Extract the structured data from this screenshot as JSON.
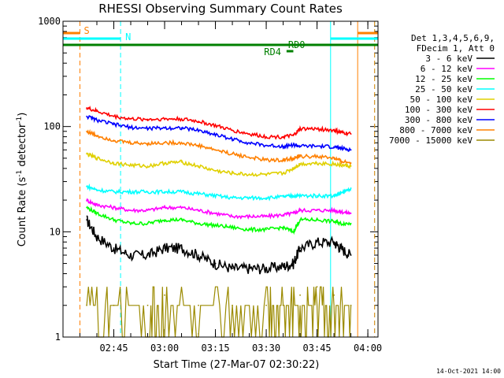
{
  "chart_data": {
    "type": "line",
    "title": "RHESSI Observing Summary Count Rates",
    "xlabel": "Start Time (27-Mar-07 02:30:22)",
    "ylabel_prefix": "Count Rate (s",
    "ylabel_sup1": "-1",
    "ylabel_mid": " detector",
    "ylabel_sup2": "-1",
    "ylabel_suffix": ")",
    "y_scale": "log",
    "ylim": [
      1,
      1000
    ],
    "xlim": [
      "02:30",
      "04:03"
    ],
    "x_ticks": [
      "02:45",
      "03:00",
      "03:15",
      "03:30",
      "03:45",
      "04:00"
    ],
    "y_ticks": [
      "1",
      "10",
      "100",
      "1000"
    ],
    "legend_header": [
      "Det 1,3,4,5,6,9,",
      "FDecim 1, Att 0"
    ],
    "legend_placement": "right",
    "series": [
      {
        "name": "3 - 6 keV",
        "color": "#000000",
        "x": [
          "02:37",
          "02:40",
          "02:45",
          "02:50",
          "02:55",
          "03:00",
          "03:05",
          "03:10",
          "03:15",
          "03:20",
          "03:25",
          "03:30",
          "03:35",
          "03:38",
          "03:40",
          "03:45",
          "03:50",
          "03:52",
          "03:55"
        ],
        "y": [
          13,
          9,
          7,
          6,
          6,
          7,
          7,
          6,
          5,
          4.5,
          4.5,
          4.5,
          4.7,
          5,
          7,
          8,
          8,
          7,
          6
        ]
      },
      {
        "name": "6 - 12 keV",
        "color": "#ff00ff",
        "x": [
          "02:37",
          "02:40",
          "02:45",
          "02:50",
          "02:55",
          "03:00",
          "03:05",
          "03:10",
          "03:15",
          "03:20",
          "03:25",
          "03:30",
          "03:35",
          "03:38",
          "03:40",
          "03:45",
          "03:50",
          "03:52",
          "03:55"
        ],
        "y": [
          20,
          18,
          17,
          16,
          16,
          17,
          17,
          16,
          15,
          14,
          14,
          14,
          14.5,
          15,
          16,
          16,
          16,
          15.5,
          15
        ]
      },
      {
        "name": "12 - 25 keV",
        "color": "#00ff00",
        "x": [
          "02:37",
          "02:40",
          "02:45",
          "02:50",
          "02:55",
          "03:00",
          "03:05",
          "03:10",
          "03:15",
          "03:20",
          "03:25",
          "03:30",
          "03:35",
          "03:38",
          "03:40",
          "03:45",
          "03:50",
          "03:52",
          "03:55"
        ],
        "y": [
          17,
          15,
          13,
          12,
          12,
          13,
          13,
          12,
          11.5,
          11,
          10.5,
          10.5,
          11,
          10,
          13,
          13,
          12.5,
          12,
          12
        ]
      },
      {
        "name": "25 - 50 keV",
        "color": "#00ffff",
        "x": [
          "02:37",
          "02:40",
          "02:45",
          "02:50",
          "02:55",
          "03:00",
          "03:05",
          "03:10",
          "03:15",
          "03:20",
          "03:25",
          "03:30",
          "03:35",
          "03:38",
          "03:40",
          "03:45",
          "03:50",
          "03:52",
          "03:55"
        ],
        "y": [
          27,
          25,
          24,
          24,
          24,
          24,
          24,
          23,
          22,
          21,
          21,
          21,
          21.5,
          22,
          22,
          22,
          22,
          23,
          26
        ]
      },
      {
        "name": "50 - 100 keV",
        "color": "#e0d000",
        "x": [
          "02:37",
          "02:40",
          "02:45",
          "02:50",
          "02:55",
          "03:00",
          "03:05",
          "03:10",
          "03:15",
          "03:20",
          "03:25",
          "03:30",
          "03:35",
          "03:38",
          "03:40",
          "03:45",
          "03:50",
          "03:52",
          "03:55"
        ],
        "y": [
          55,
          50,
          45,
          43,
          42,
          45,
          46,
          42,
          38,
          36,
          35,
          35,
          36,
          40,
          44,
          45,
          44,
          43,
          42
        ]
      },
      {
        "name": "100 - 300 keV",
        "color": "#ff0000",
        "x": [
          "02:37",
          "02:40",
          "02:45",
          "02:50",
          "02:55",
          "03:00",
          "03:05",
          "03:10",
          "03:15",
          "03:20",
          "03:25",
          "03:30",
          "03:35",
          "03:38",
          "03:40",
          "03:45",
          "03:50",
          "03:52",
          "03:55"
        ],
        "y": [
          150,
          140,
          125,
          118,
          117,
          118,
          118,
          112,
          102,
          92,
          85,
          80,
          80,
          82,
          95,
          95,
          92,
          88,
          85
        ]
      },
      {
        "name": "300 - 800 keV",
        "color": "#0000ff",
        "x": [
          "02:37",
          "02:40",
          "02:45",
          "02:50",
          "02:55",
          "03:00",
          "03:05",
          "03:10",
          "03:15",
          "03:20",
          "03:25",
          "03:30",
          "03:35",
          "03:38",
          "03:40",
          "03:45",
          "03:50",
          "03:52",
          "03:55"
        ],
        "y": [
          125,
          115,
          105,
          98,
          96,
          97,
          97,
          92,
          84,
          76,
          70,
          66,
          65,
          67,
          65,
          65,
          64,
          62,
          60
        ]
      },
      {
        "name": "800 - 7000 keV",
        "color": "#ff8000",
        "x": [
          "02:37",
          "02:40",
          "02:45",
          "02:50",
          "02:55",
          "03:00",
          "03:05",
          "03:10",
          "03:15",
          "03:20",
          "03:25",
          "03:30",
          "03:35",
          "03:38",
          "03:40",
          "03:45",
          "03:50",
          "03:52",
          "03:55"
        ],
        "y": [
          90,
          82,
          74,
          70,
          69,
          70,
          70,
          66,
          60,
          55,
          51,
          48,
          48,
          50,
          52,
          52,
          50,
          47,
          45
        ]
      },
      {
        "name": "7000 - 15000 keV",
        "color": "#9b8a00",
        "x": [
          "02:37",
          "02:45",
          "02:55",
          "03:00",
          "03:10",
          "03:20",
          "03:30",
          "03:35",
          "03:40",
          "03:45",
          "03:50",
          "03:55"
        ],
        "y": [
          2,
          2,
          2,
          2.5,
          2,
          2,
          2,
          2,
          2.5,
          3,
          2.5,
          2
        ]
      }
    ],
    "annotations": [
      {
        "text": "S",
        "color": "#ff8000",
        "x": "02:36"
      },
      {
        "text": "N",
        "color": "#00ffff",
        "x": "02:47"
      },
      {
        "text": "RD0",
        "color": "#008000",
        "x": "03:37"
      },
      {
        "text": "RD4",
        "color": "#008000",
        "x": "03:34"
      }
    ],
    "vertical_markers": [
      {
        "x": "02:35",
        "color": "#ff8000",
        "style": "dashed"
      },
      {
        "x": "02:47",
        "color": "#00ffff",
        "style": "dashed"
      },
      {
        "x": "03:49",
        "color": "#00ffff",
        "style": "solid"
      },
      {
        "x": "03:57",
        "color": "#ff8000",
        "style": "solid"
      },
      {
        "x": "04:02",
        "color": "#00ffff",
        "style": "dashed"
      },
      {
        "x": "04:02",
        "color": "#ff8000",
        "style": "dashed"
      }
    ]
  },
  "footer": {
    "timestamp": "14-Oct-2021 14:00"
  }
}
